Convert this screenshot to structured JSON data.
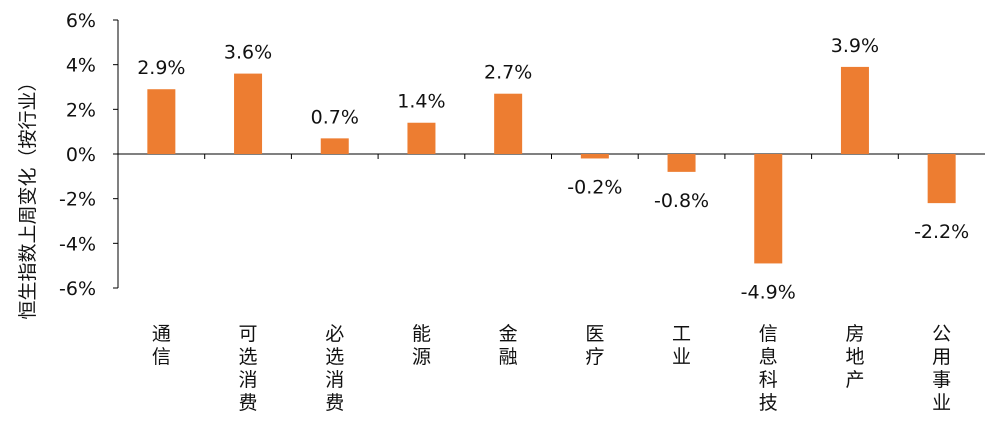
{
  "chart_data": {
    "type": "bar",
    "ylabel": "恒生指数上周变化（按行业）",
    "categories": [
      "通信",
      "可选消费",
      "必选消费",
      "能源",
      "金融",
      "医疗",
      "工业",
      "信息科技",
      "房地产",
      "公用事业"
    ],
    "values": [
      2.9,
      3.6,
      0.7,
      1.4,
      2.7,
      -0.2,
      -0.8,
      -4.9,
      3.9,
      -2.2
    ],
    "data_labels": [
      "2.9%",
      "3.6%",
      "0.7%",
      "1.4%",
      "2.7%",
      "-0.2%",
      "-0.8%",
      "-4.9%",
      "3.9%",
      "-2.2%"
    ],
    "ylim": [
      -6,
      6
    ],
    "yticks": [
      6,
      4,
      2,
      0,
      -2,
      -4,
      -6
    ],
    "ytick_labels": [
      "6%",
      "4%",
      "2%",
      "0%",
      "-2%",
      "-4%",
      "-6%"
    ],
    "bar_color": "#ED7D31",
    "axis_color": "#000000",
    "grid": false,
    "legend": "none"
  }
}
